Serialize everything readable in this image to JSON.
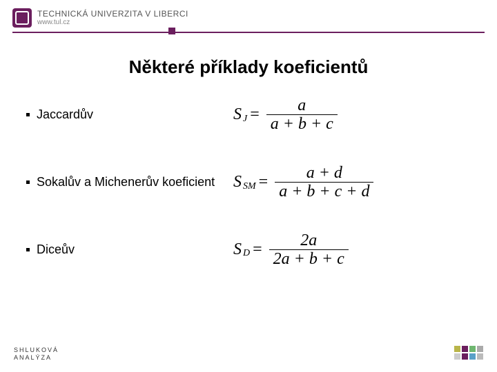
{
  "header": {
    "university_name": "TECHNICKÁ UNIVERZITA V LIBERCI",
    "url": "www.tul.cz",
    "brand_color": "#6b1e5e"
  },
  "title": "Některé příklady koeficientů",
  "items": [
    {
      "label": "Jaccardův",
      "symbol": "S",
      "subscript": "J",
      "numerator": "a",
      "denominator": "a + b + c"
    },
    {
      "label": "Sokalův a Michenerův koeficient",
      "symbol": "S",
      "subscript": "SM",
      "numerator": "a + d",
      "denominator": "a + b + c + d"
    },
    {
      "label": "Diceův",
      "symbol": "S",
      "subscript": "D",
      "numerator": "2a",
      "denominator": "2a + b + c"
    }
  ],
  "footer": {
    "line1": "SHLUKOVÁ",
    "line2": "ANALÝZA",
    "square_colors": [
      "#b9b54a",
      "#6b1e5e",
      "#6fb770",
      "#aaaaaa",
      "#cccccc",
      "#6b1e5e",
      "#5aa0c8",
      "#bbbbbb"
    ]
  }
}
